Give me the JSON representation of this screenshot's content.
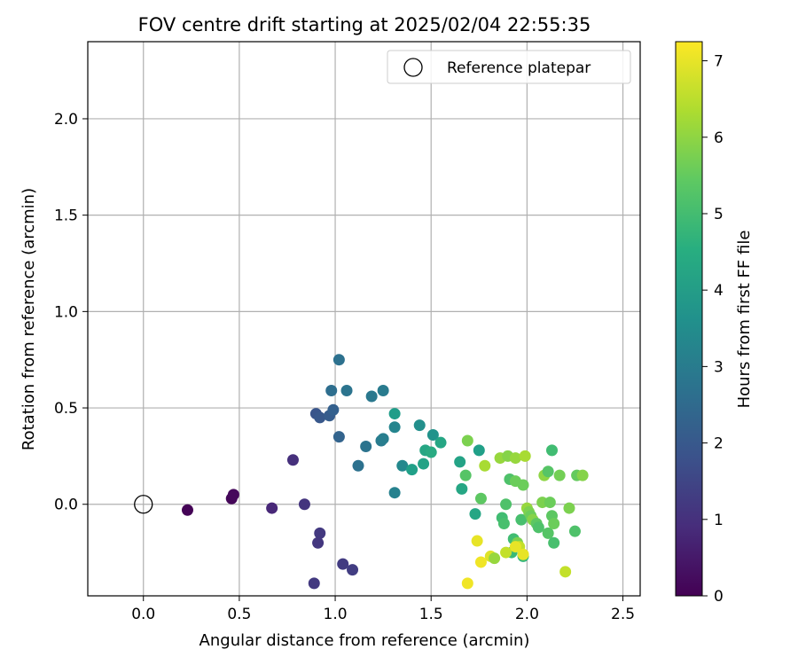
{
  "chart_data": {
    "type": "scatter",
    "title": "FOV centre drift starting at 2025/02/04 22:55:35",
    "xlabel": "Angular distance from reference (arcmin)",
    "ylabel": "Rotation from reference (arcmin)",
    "xlim": [
      -0.29,
      2.59
    ],
    "ylim": [
      -0.475,
      2.4
    ],
    "xticks": [
      "0.0",
      "0.5",
      "1.0",
      "1.5",
      "2.0",
      "2.5"
    ],
    "xtick_values": [
      0.0,
      0.5,
      1.0,
      1.5,
      2.0,
      2.5
    ],
    "yticks": [
      "0.0",
      "0.5",
      "1.0",
      "1.5",
      "2.0"
    ],
    "ytick_values": [
      0.0,
      0.5,
      1.0,
      1.5,
      2.0
    ],
    "grid": true,
    "colormap": "viridis",
    "colorbar": {
      "label": "Hours from first FF file",
      "range": [
        0,
        7.25
      ],
      "ticks": [
        "0",
        "1",
        "2",
        "3",
        "4",
        "5",
        "6",
        "7"
      ],
      "tick_values": [
        0,
        1,
        2,
        3,
        4,
        5,
        6,
        7
      ]
    },
    "legend": {
      "position": "top-right",
      "entries": [
        {
          "label": "Reference platepar",
          "marker": "open-circle",
          "color": "#000000"
        }
      ]
    },
    "reference_point": {
      "x": 0.0,
      "y": 0.0
    },
    "points": [
      {
        "x": 0.23,
        "y": -0.03,
        "c": 0.05
      },
      {
        "x": 0.46,
        "y": 0.03,
        "c": 0.1
      },
      {
        "x": 0.47,
        "y": 0.05,
        "c": 0.15
      },
      {
        "x": 0.67,
        "y": -0.02,
        "c": 0.8
      },
      {
        "x": 0.78,
        "y": 0.23,
        "c": 1.0
      },
      {
        "x": 0.84,
        "y": 0.0,
        "c": 1.1
      },
      {
        "x": 0.89,
        "y": -0.41,
        "c": 1.2
      },
      {
        "x": 0.91,
        "y": -0.2,
        "c": 1.15
      },
      {
        "x": 0.92,
        "y": -0.15,
        "c": 1.2
      },
      {
        "x": 1.04,
        "y": -0.31,
        "c": 1.25
      },
      {
        "x": 1.09,
        "y": -0.34,
        "c": 1.3
      },
      {
        "x": 0.9,
        "y": 0.47,
        "c": 1.9
      },
      {
        "x": 0.92,
        "y": 0.45,
        "c": 2.0
      },
      {
        "x": 0.97,
        "y": 0.46,
        "c": 2.1
      },
      {
        "x": 0.99,
        "y": 0.49,
        "c": 2.2
      },
      {
        "x": 1.02,
        "y": 0.35,
        "c": 2.3
      },
      {
        "x": 0.98,
        "y": 0.59,
        "c": 2.6
      },
      {
        "x": 1.02,
        "y": 0.75,
        "c": 2.7
      },
      {
        "x": 1.06,
        "y": 0.59,
        "c": 2.8
      },
      {
        "x": 1.12,
        "y": 0.2,
        "c": 2.7
      },
      {
        "x": 1.16,
        "y": 0.3,
        "c": 2.8
      },
      {
        "x": 1.19,
        "y": 0.56,
        "c": 2.9
      },
      {
        "x": 1.24,
        "y": 0.33,
        "c": 3.0
      },
      {
        "x": 1.25,
        "y": 0.34,
        "c": 3.1
      },
      {
        "x": 1.25,
        "y": 0.59,
        "c": 3.0
      },
      {
        "x": 1.31,
        "y": 0.06,
        "c": 3.2
      },
      {
        "x": 1.31,
        "y": 0.4,
        "c": 3.3
      },
      {
        "x": 1.35,
        "y": 0.2,
        "c": 3.4
      },
      {
        "x": 1.31,
        "y": 0.47,
        "c": 4.0
      },
      {
        "x": 1.4,
        "y": 0.18,
        "c": 4.1
      },
      {
        "x": 1.44,
        "y": 0.41,
        "c": 3.6
      },
      {
        "x": 1.46,
        "y": 0.21,
        "c": 4.2
      },
      {
        "x": 1.47,
        "y": 0.28,
        "c": 4.3
      },
      {
        "x": 1.5,
        "y": 0.27,
        "c": 4.4
      },
      {
        "x": 1.51,
        "y": 0.36,
        "c": 3.7
      },
      {
        "x": 1.55,
        "y": 0.32,
        "c": 4.3
      },
      {
        "x": 1.65,
        "y": 0.22,
        "c": 4.2
      },
      {
        "x": 1.66,
        "y": 0.08,
        "c": 4.3
      },
      {
        "x": 1.68,
        "y": 0.15,
        "c": 5.3
      },
      {
        "x": 1.69,
        "y": 0.33,
        "c": 5.8
      },
      {
        "x": 1.73,
        "y": -0.05,
        "c": 4.3
      },
      {
        "x": 1.75,
        "y": 0.28,
        "c": 4.1
      },
      {
        "x": 1.76,
        "y": 0.03,
        "c": 5.4
      },
      {
        "x": 1.78,
        "y": 0.2,
        "c": 6.3
      },
      {
        "x": 1.86,
        "y": 0.24,
        "c": 6.1
      },
      {
        "x": 1.87,
        "y": -0.07,
        "c": 5.0
      },
      {
        "x": 1.88,
        "y": -0.1,
        "c": 5.1
      },
      {
        "x": 1.89,
        "y": 0.0,
        "c": 5.2
      },
      {
        "x": 1.9,
        "y": 0.25,
        "c": 5.9
      },
      {
        "x": 1.91,
        "y": 0.13,
        "c": 5.2
      },
      {
        "x": 1.92,
        "y": -0.25,
        "c": 4.9
      },
      {
        "x": 1.93,
        "y": -0.18,
        "c": 5.0
      },
      {
        "x": 1.94,
        "y": 0.12,
        "c": 5.6
      },
      {
        "x": 1.94,
        "y": 0.24,
        "c": 6.1
      },
      {
        "x": 1.95,
        "y": -0.2,
        "c": 5.8
      },
      {
        "x": 1.96,
        "y": -0.22,
        "c": 6.6
      },
      {
        "x": 1.97,
        "y": -0.08,
        "c": 5.1
      },
      {
        "x": 1.98,
        "y": 0.1,
        "c": 5.6
      },
      {
        "x": 1.98,
        "y": -0.27,
        "c": 4.8
      },
      {
        "x": 1.99,
        "y": 0.25,
        "c": 6.3
      },
      {
        "x": 2.0,
        "y": -0.02,
        "c": 6.1
      },
      {
        "x": 2.01,
        "y": -0.04,
        "c": 5.8
      },
      {
        "x": 2.02,
        "y": -0.06,
        "c": 5.6
      },
      {
        "x": 2.03,
        "y": -0.08,
        "c": 5.9
      },
      {
        "x": 2.05,
        "y": -0.1,
        "c": 5.4
      },
      {
        "x": 2.06,
        "y": -0.12,
        "c": 5.2
      },
      {
        "x": 2.08,
        "y": 0.01,
        "c": 5.8
      },
      {
        "x": 2.09,
        "y": 0.15,
        "c": 6.0
      },
      {
        "x": 2.11,
        "y": 0.17,
        "c": 5.3
      },
      {
        "x": 2.11,
        "y": -0.15,
        "c": 5.3
      },
      {
        "x": 2.12,
        "y": 0.01,
        "c": 5.6
      },
      {
        "x": 2.13,
        "y": -0.06,
        "c": 5.4
      },
      {
        "x": 2.13,
        "y": 0.28,
        "c": 5.0
      },
      {
        "x": 2.14,
        "y": -0.2,
        "c": 5.1
      },
      {
        "x": 2.14,
        "y": -0.1,
        "c": 5.6
      },
      {
        "x": 2.17,
        "y": 0.15,
        "c": 5.7
      },
      {
        "x": 2.2,
        "y": -0.35,
        "c": 6.6
      },
      {
        "x": 2.22,
        "y": -0.02,
        "c": 5.8
      },
      {
        "x": 2.25,
        "y": -0.14,
        "c": 5.2
      },
      {
        "x": 2.26,
        "y": 0.15,
        "c": 5.5
      },
      {
        "x": 2.29,
        "y": 0.15,
        "c": 5.9
      },
      {
        "x": 1.69,
        "y": -0.41,
        "c": 7.1
      },
      {
        "x": 1.74,
        "y": -0.19,
        "c": 7.0
      },
      {
        "x": 1.76,
        "y": -0.3,
        "c": 7.1
      },
      {
        "x": 1.81,
        "y": -0.27,
        "c": 6.9
      },
      {
        "x": 1.83,
        "y": -0.28,
        "c": 6.1
      },
      {
        "x": 1.89,
        "y": -0.25,
        "c": 6.6
      },
      {
        "x": 1.94,
        "y": -0.22,
        "c": 7.0
      },
      {
        "x": 1.98,
        "y": -0.26,
        "c": 7.0
      }
    ]
  }
}
